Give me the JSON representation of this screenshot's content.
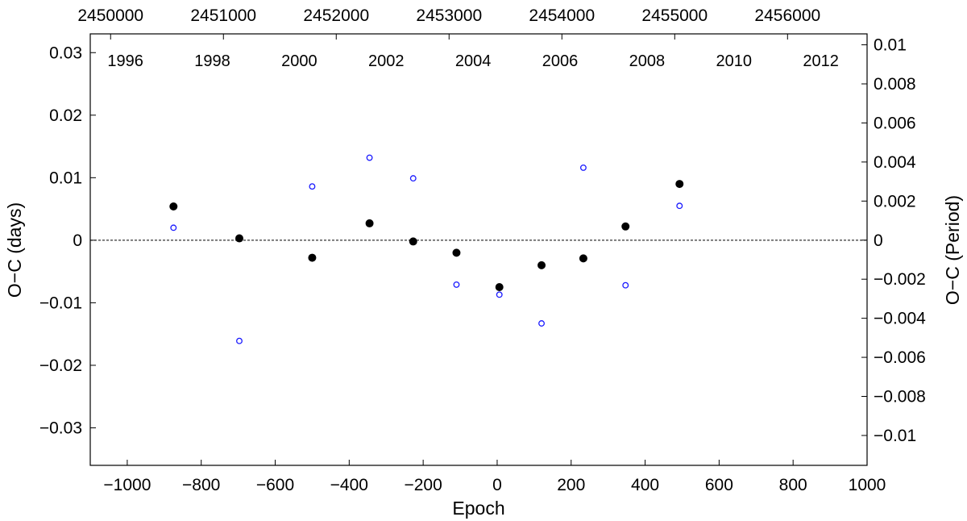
{
  "chart_data": {
    "type": "scatter",
    "title": "",
    "xlabel": "Epoch",
    "ylabel": "O−C (days)",
    "ylabel_right": "O−C (Period)",
    "xlim": [
      -1100,
      1000
    ],
    "ylim": [
      -0.036,
      0.033
    ],
    "x_ticks": [
      -1000,
      -800,
      -600,
      -400,
      -200,
      0,
      200,
      400,
      600,
      800,
      1000
    ],
    "x_tick_labels": [
      "−1000",
      "−800",
      "−600",
      "−400",
      "−200",
      "0",
      "200",
      "400",
      "600",
      "800",
      "1000"
    ],
    "y_ticks": [
      -0.03,
      -0.02,
      -0.01,
      0,
      0.01,
      0.02,
      0.03
    ],
    "y_tick_labels": [
      "−0.03",
      "−0.02",
      "−0.01",
      "0",
      "0.01",
      "0.02",
      "0.03"
    ],
    "y_right_ticks": [
      -0.01,
      -0.008,
      -0.006,
      -0.004,
      -0.002,
      0,
      0.002,
      0.004,
      0.006,
      0.008,
      0.01
    ],
    "y_right_tick_labels": [
      "−0.01",
      "−0.008",
      "−0.006",
      "−0.004",
      "−0.002",
      "0",
      "0.002",
      "0.004",
      "0.006",
      "0.008",
      "0.01"
    ],
    "y_right_lim": [
      -0.01153,
      0.01056
    ],
    "top_axis_jd": {
      "ticks": [
        2450000,
        2451000,
        2452000,
        2453000,
        2454000,
        2455000,
        2456000
      ],
      "labels": [
        "2450000",
        "2451000",
        "2452000",
        "2453000",
        "2454000",
        "2455000",
        "2456000"
      ],
      "epoch_at_ticks": [
        -1045,
        -740,
        -435,
        -130,
        175,
        480,
        785
      ]
    },
    "top_axis_years": {
      "labels": [
        "1996",
        "1998",
        "2000",
        "2002",
        "2004",
        "2006",
        "2008",
        "2010",
        "2012"
      ],
      "epoch_positions": [
        -1005,
        -770,
        -535,
        -300,
        -65,
        170,
        405,
        640,
        875
      ]
    },
    "reference_line_y": 0,
    "grid": false,
    "series": [
      {
        "marker": "filled-circle",
        "color": "#000000",
        "points": [
          {
            "x": -875,
            "y": 0.0054
          },
          {
            "x": -697,
            "y": 0.0003
          },
          {
            "x": -500,
            "y": -0.0028
          },
          {
            "x": -345,
            "y": 0.0027
          },
          {
            "x": -227,
            "y": -0.0002
          },
          {
            "x": -110,
            "y": -0.002
          },
          {
            "x": 6,
            "y": -0.0075
          },
          {
            "x": 120,
            "y": -0.004
          },
          {
            "x": 233,
            "y": -0.0029
          },
          {
            "x": 347,
            "y": 0.0022
          },
          {
            "x": 493,
            "y": 0.009
          }
        ]
      },
      {
        "marker": "open-circle",
        "color": "#1a1aff",
        "points": [
          {
            "x": -875,
            "y": 0.002
          },
          {
            "x": -697,
            "y": -0.0161
          },
          {
            "x": -500,
            "y": 0.0086
          },
          {
            "x": -345,
            "y": 0.0132
          },
          {
            "x": -227,
            "y": 0.0099
          },
          {
            "x": -110,
            "y": -0.0071
          },
          {
            "x": 6,
            "y": -0.0087
          },
          {
            "x": 120,
            "y": -0.0133
          },
          {
            "x": 233,
            "y": 0.0116
          },
          {
            "x": 347,
            "y": -0.0072
          },
          {
            "x": 493,
            "y": 0.0055
          }
        ]
      }
    ]
  }
}
